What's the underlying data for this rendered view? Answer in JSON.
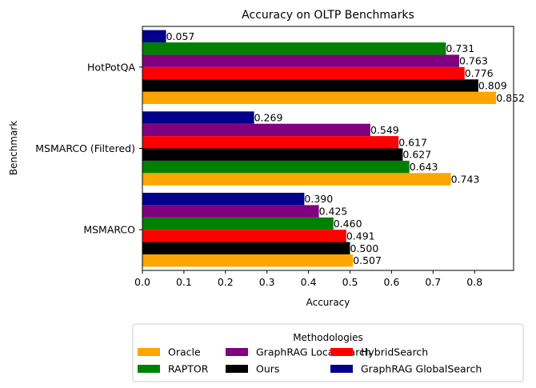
{
  "chart_data": {
    "type": "bar",
    "orientation": "horizontal",
    "title": "Accuracy on OLTP Benchmarks",
    "xlabel": "Accuracy",
    "ylabel": "Benchmark",
    "xlim": [
      0,
      0.894
    ],
    "xticks": [
      "0.0",
      "0.1",
      "0.2",
      "0.3",
      "0.4",
      "0.5",
      "0.6",
      "0.7",
      "0.8"
    ],
    "grid": false,
    "legend": {
      "title": "Methodologies",
      "placement": "bottom-center",
      "columns": 3
    },
    "categories": [
      {
        "name": "HotPotQA",
        "bars": [
          {
            "series": "Oracle",
            "value": 0.852,
            "label": "0.852",
            "color": "#ffa500"
          },
          {
            "series": "Ours",
            "value": 0.809,
            "label": "0.809",
            "color": "#000000"
          },
          {
            "series": "HybridSearch",
            "value": 0.776,
            "label": "0.776",
            "color": "#ff0000"
          },
          {
            "series": "GraphRAG LocalSearch",
            "value": 0.763,
            "label": "0.763",
            "color": "#800080"
          },
          {
            "series": "RAPTOR",
            "value": 0.731,
            "label": "0.731",
            "color": "#008000"
          },
          {
            "series": "GraphRAG GlobalSearch",
            "value": 0.057,
            "label": "0.057",
            "color": "#00008b"
          }
        ]
      },
      {
        "name": "MSMARCO (Filtered)",
        "bars": [
          {
            "series": "Oracle",
            "value": 0.743,
            "label": "0.743",
            "color": "#ffa500"
          },
          {
            "series": "RAPTOR",
            "value": 0.643,
            "label": "0.643",
            "color": "#008000"
          },
          {
            "series": "Ours",
            "value": 0.627,
            "label": "0.627",
            "color": "#000000"
          },
          {
            "series": "HybridSearch",
            "value": 0.617,
            "label": "0.617",
            "color": "#ff0000"
          },
          {
            "series": "GraphRAG LocalSearch",
            "value": 0.549,
            "label": "0.549",
            "color": "#800080"
          },
          {
            "series": "GraphRAG GlobalSearch",
            "value": 0.269,
            "label": "0.269",
            "color": "#00008b"
          }
        ]
      },
      {
        "name": "MSMARCO",
        "bars": [
          {
            "series": "Oracle",
            "value": 0.507,
            "label": "0.507",
            "color": "#ffa500"
          },
          {
            "series": "Ours",
            "value": 0.5,
            "label": "0.500",
            "color": "#000000"
          },
          {
            "series": "HybridSearch",
            "value": 0.491,
            "label": "0.491",
            "color": "#ff0000"
          },
          {
            "series": "RAPTOR",
            "value": 0.46,
            "label": "0.460",
            "color": "#008000"
          },
          {
            "series": "GraphRAG LocalSearch",
            "value": 0.425,
            "label": "0.425",
            "color": "#800080"
          },
          {
            "series": "GraphRAG GlobalSearch",
            "value": 0.39,
            "label": "0.390",
            "color": "#00008b"
          }
        ]
      }
    ],
    "series": [
      {
        "name": "Oracle",
        "color": "#ffa500"
      },
      {
        "name": "RAPTOR",
        "color": "#008000"
      },
      {
        "name": "GraphRAG LocalSearch",
        "color": "#800080"
      },
      {
        "name": "Ours",
        "color": "#000000"
      },
      {
        "name": "HybridSearch",
        "color": "#ff0000"
      },
      {
        "name": "GraphRAG GlobalSearch",
        "color": "#00008b"
      }
    ]
  }
}
